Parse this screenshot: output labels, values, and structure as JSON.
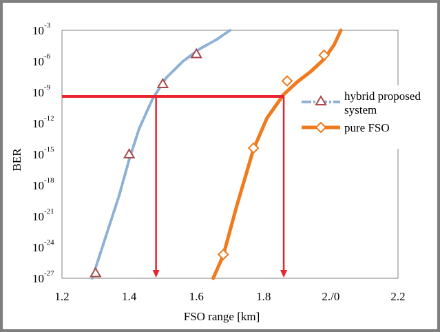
{
  "chart_data": {
    "type": "line",
    "xlabel": "FSO range [km]",
    "ylabel": "BER",
    "xlim": [
      1.2,
      2.2
    ],
    "ylim_exponent": [
      -27,
      -3
    ],
    "y_scale": "log",
    "grid": false,
    "legend_position": "right",
    "x_ticks": [
      {
        "value": 1.2,
        "label": "1.2"
      },
      {
        "value": 1.4,
        "label": "1.4"
      },
      {
        "value": 1.6,
        "label": "1.6"
      },
      {
        "value": 1.8,
        "label": "1.8"
      },
      {
        "value": 2.0,
        "label": "2./0"
      },
      {
        "value": 2.2,
        "label": "2.2"
      }
    ],
    "y_ticks": [
      {
        "exp": -3,
        "base": "10",
        "power": "-3"
      },
      {
        "exp": -6,
        "base": "10",
        "power": "-6"
      },
      {
        "exp": -9,
        "base": "10",
        "power": "-9"
      },
      {
        "exp": -12,
        "base": "10",
        "power": "-12"
      },
      {
        "exp": -15,
        "base": "10",
        "power": "-15"
      },
      {
        "exp": -18,
        "base": "10",
        "power": "-18"
      },
      {
        "exp": -21,
        "base": "10",
        "power": "-21"
      },
      {
        "exp": -24,
        "base": "10",
        "power": "-24"
      },
      {
        "exp": -27,
        "base": "10",
        "power": "-27"
      }
    ],
    "series": [
      {
        "name": "hybrid proposed system",
        "color": "#8fb0d6",
        "marker_color": "#a8484a",
        "marker": "triangle",
        "line": [
          [
            1.29,
            -27
          ],
          [
            1.31,
            -25
          ],
          [
            1.34,
            -22
          ],
          [
            1.37,
            -19
          ],
          [
            1.4,
            -15.5
          ],
          [
            1.43,
            -12.5
          ],
          [
            1.47,
            -9.6
          ],
          [
            1.51,
            -7.6
          ],
          [
            1.56,
            -6.0
          ],
          [
            1.61,
            -4.8
          ],
          [
            1.66,
            -3.9
          ],
          [
            1.7,
            -3.0
          ]
        ],
        "markers": [
          [
            1.3,
            -26.5
          ],
          [
            1.4,
            -15.0
          ],
          [
            1.5,
            -8.2
          ],
          [
            1.6,
            -5.3
          ]
        ]
      },
      {
        "name": "pure FSO",
        "color": "#f07a1e",
        "marker_color": "#f07a1e",
        "marker": "diamond",
        "line": [
          [
            1.65,
            -27
          ],
          [
            1.68,
            -24.8
          ],
          [
            1.72,
            -20
          ],
          [
            1.77,
            -14.5
          ],
          [
            1.81,
            -11.5
          ],
          [
            1.86,
            -9.2
          ],
          [
            1.9,
            -8.0
          ],
          [
            1.94,
            -7.0
          ],
          [
            1.98,
            -5.8
          ],
          [
            2.01,
            -4.4
          ],
          [
            2.03,
            -3.0
          ]
        ],
        "markers": [
          [
            1.68,
            -24.7
          ],
          [
            1.77,
            -14.4
          ],
          [
            1.87,
            -7.9
          ],
          [
            1.98,
            -5.4
          ]
        ]
      }
    ],
    "annotations": {
      "color": "#e8242f",
      "threshold_exp": -9.4,
      "drop_lines_x": [
        1.48,
        1.86
      ]
    }
  }
}
